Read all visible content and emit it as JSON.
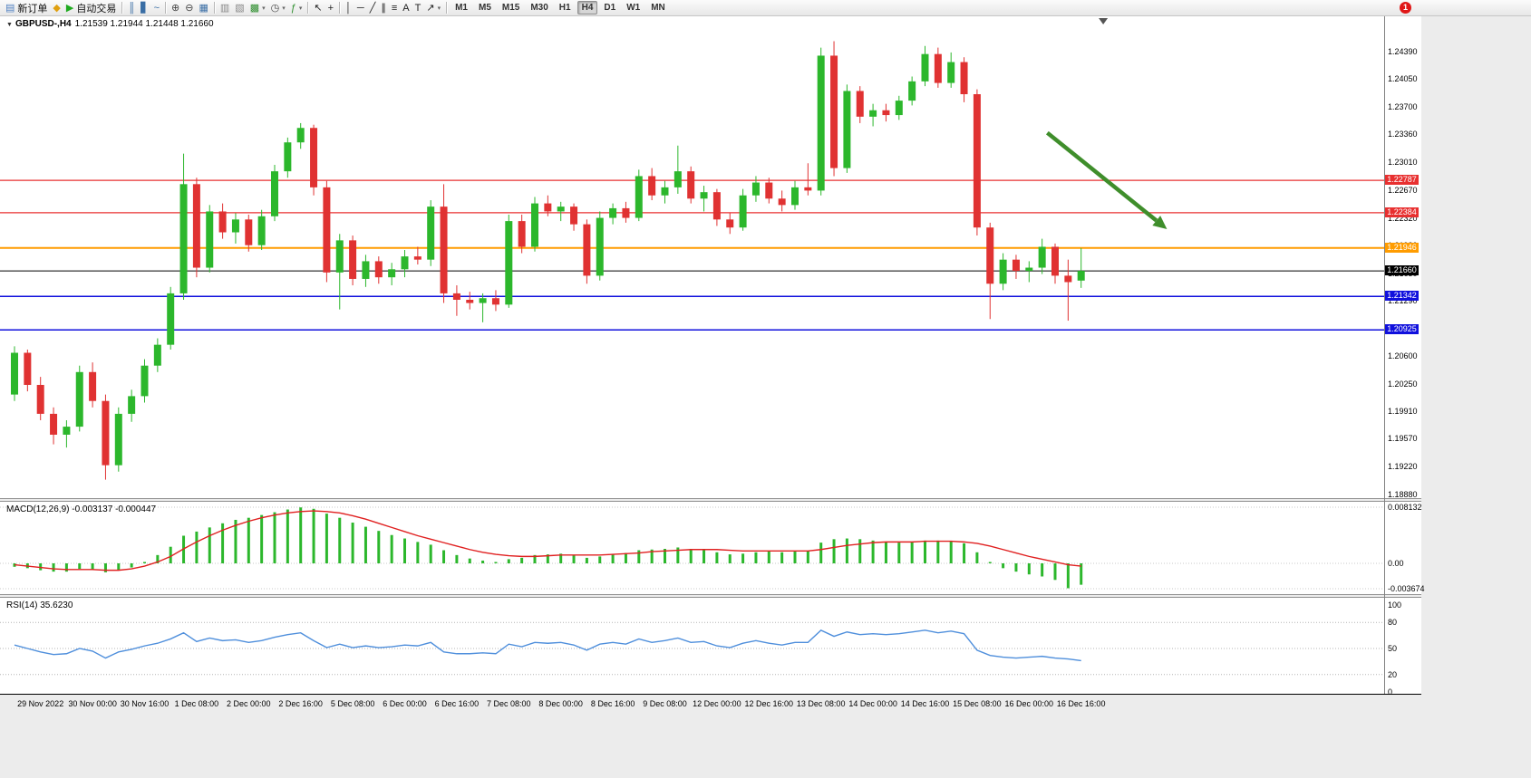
{
  "toolbar": {
    "badge": "1",
    "active_timeframe": "H4",
    "timeframes": [
      "M1",
      "M5",
      "M15",
      "M30",
      "H1",
      "H4",
      "D1",
      "W1",
      "MN"
    ],
    "items": [
      {
        "type": "btn",
        "name": "new-order-button",
        "icon": "new-order-icon",
        "glyph": "▤",
        "glyph_color": "#4f7fc0",
        "label": "新订单"
      },
      {
        "type": "btn",
        "name": "mql5-community-button",
        "icon": "diamond-icon",
        "glyph": "◆",
        "glyph_color": "#e0a010"
      },
      {
        "type": "btn",
        "name": "autotrade-button",
        "icon": "autotrade-play-icon",
        "glyph": "▶",
        "glyph_color": "#1faa1f",
        "label": "自动交易"
      },
      {
        "type": "sep"
      },
      {
        "type": "btn",
        "name": "bar-chart-button",
        "icon": "bar-chart-icon",
        "glyph": "║",
        "glyph_color": "#3a6ea5"
      },
      {
        "type": "btn",
        "name": "candlestick-chart-button",
        "icon": "candlestick-icon",
        "glyph": "▋",
        "glyph_color": "#3a6ea5"
      },
      {
        "type": "btn",
        "name": "line-chart-button",
        "icon": "line-chart-icon",
        "glyph": "~",
        "glyph_color": "#3a6ea5"
      },
      {
        "type": "sep"
      },
      {
        "type": "btn",
        "name": "zoom-in-button",
        "icon": "zoom-in-icon",
        "glyph": "⊕",
        "glyph_color": "#444"
      },
      {
        "type": "btn",
        "name": "zoom-out-button",
        "icon": "zoom-out-icon",
        "glyph": "⊖",
        "glyph_color": "#444"
      },
      {
        "type": "btn",
        "name": "tile-windows-button",
        "icon": "tile-windows-icon",
        "glyph": "▦",
        "glyph_color": "#3a6ea5"
      },
      {
        "type": "sep"
      },
      {
        "type": "btn",
        "name": "arrange-windows-button",
        "icon": "arrange-icon",
        "glyph": "▥",
        "glyph_color": "#888"
      },
      {
        "type": "btn",
        "name": "cascade-windows-button",
        "icon": "cascade-icon",
        "glyph": "▧",
        "glyph_color": "#888"
      },
      {
        "type": "btn",
        "name": "new-chart-button",
        "icon": "new-chart-icon",
        "glyph": "▩",
        "glyph_color": "#2f8f2f",
        "dropdown": true
      },
      {
        "type": "btn",
        "name": "periods-button",
        "icon": "clock-icon",
        "glyph": "◷",
        "glyph_color": "#444",
        "dropdown": true
      },
      {
        "type": "btn",
        "name": "indicators-button",
        "icon": "indicators-icon",
        "glyph": "ƒ",
        "glyph_color": "#2f8f2f",
        "dropdown": true
      },
      {
        "type": "sep"
      },
      {
        "type": "btn",
        "name": "cursor-button",
        "icon": "cursor-icon",
        "glyph": "↖",
        "glyph_color": "#222"
      },
      {
        "type": "btn",
        "name": "crosshair-button",
        "icon": "crosshair-icon",
        "glyph": "+",
        "glyph_color": "#222"
      },
      {
        "type": "sep"
      },
      {
        "type": "btn",
        "name": "vertical-line-button",
        "icon": "vertical-line-icon",
        "glyph": "│",
        "glyph_color": "#222"
      },
      {
        "type": "btn",
        "name": "horizontal-line-button",
        "icon": "horizontal-line-icon",
        "glyph": "─",
        "glyph_color": "#222"
      },
      {
        "type": "btn",
        "name": "trendline-button",
        "icon": "trendline-icon",
        "glyph": "╱",
        "glyph_color": "#222"
      },
      {
        "type": "btn",
        "name": "channel-button",
        "icon": "channel-icon",
        "glyph": "∥",
        "glyph_color": "#222"
      },
      {
        "type": "btn",
        "name": "fibonacci-button",
        "icon": "fibonacci-icon",
        "glyph": "≡",
        "glyph_color": "#222"
      },
      {
        "type": "btn",
        "name": "text-button",
        "icon": "text-icon",
        "glyph": "A",
        "glyph_color": "#222"
      },
      {
        "type": "btn",
        "name": "label-button",
        "icon": "label-icon",
        "glyph": "T",
        "glyph_color": "#222"
      },
      {
        "type": "btn",
        "name": "arrows-button",
        "icon": "arrow-marker-icon",
        "glyph": "↗",
        "glyph_color": "#222",
        "dropdown": true
      },
      {
        "type": "sep"
      }
    ]
  },
  "chart": {
    "collapse_arrow": "▼",
    "symbol_label": "GBPUSD-,H4",
    "ohlc_label": "1.21539 1.21944 1.21448 1.21660"
  },
  "chart_data": {
    "type": "candlestick",
    "symbol": "GBPUSD-",
    "timeframe": "H4",
    "ohlc": {
      "open": 1.21539,
      "high": 1.21944,
      "low": 1.21448,
      "close": 1.2166
    },
    "colors": {
      "bull": "#2cb72c",
      "bear": "#e03232",
      "macd_hist": "#2cb72c",
      "macd_signal": "#e02020",
      "rsi_line": "#4f8fdc"
    },
    "price_ticks": [
      1.2439,
      1.2405,
      1.237,
      1.2336,
      1.2301,
      1.2267,
      1.2232,
      1.2198,
      1.2163,
      1.2129,
      1.2094,
      1.206,
      1.2025,
      1.1991,
      1.1957,
      1.1922,
      1.1888
    ],
    "time_labels": [
      "29 Nov 2022",
      "30 Nov 00:00",
      "30 Nov 16:00",
      "1 Dec 08:00",
      "2 Dec 00:00",
      "2 Dec 16:00",
      "5 Dec 08:00",
      "6 Dec 00:00",
      "6 Dec 16:00",
      "7 Dec 08:00",
      "8 Dec 00:00",
      "8 Dec 16:00",
      "9 Dec 08:00",
      "12 Dec 00:00",
      "12 Dec 16:00",
      "13 Dec 08:00",
      "14 Dec 00:00",
      "14 Dec 16:00",
      "15 Dec 08:00",
      "16 Dec 00:00",
      "16 Dec 16:00"
    ],
    "hlines": [
      {
        "price": 1.22787,
        "label": "1.22787",
        "color": "#e83030",
        "lw": 1.2
      },
      {
        "price": 1.22384,
        "label": "1.22384",
        "color": "#e83030",
        "lw": 1.2
      },
      {
        "price": 1.21946,
        "label": "1.21946",
        "color": "#ff9c00",
        "lw": 2
      },
      {
        "price": 1.2166,
        "label": "1.21660",
        "color": "#000000",
        "lw": 1
      },
      {
        "price": 1.21342,
        "label": "1.21342",
        "color": "#1010dd",
        "lw": 1.5
      },
      {
        "price": 1.20925,
        "label": "1.20925",
        "color": "#1010dd",
        "lw": 1.5
      }
    ],
    "current_price": 1.2166,
    "candles": [
      [
        1.2012,
        1.2072,
        1.2004,
        1.2064
      ],
      [
        1.2064,
        1.2068,
        1.2016,
        1.2024
      ],
      [
        1.2024,
        1.2034,
        1.198,
        1.1988
      ],
      [
        1.1988,
        1.1996,
        1.195,
        1.1962
      ],
      [
        1.1962,
        1.198,
        1.1946,
        1.1972
      ],
      [
        1.1972,
        1.2048,
        1.1966,
        1.204
      ],
      [
        1.204,
        1.2052,
        1.1996,
        1.2004
      ],
      [
        1.2004,
        1.2012,
        1.1906,
        1.1924
      ],
      [
        1.1924,
        1.1996,
        1.1916,
        1.1988
      ],
      [
        1.1988,
        1.2018,
        1.1978,
        1.201
      ],
      [
        1.201,
        1.2056,
        1.2002,
        1.2048
      ],
      [
        1.2048,
        1.2082,
        1.204,
        1.2074
      ],
      [
        1.2074,
        1.2146,
        1.2068,
        1.2138
      ],
      [
        1.2138,
        1.2312,
        1.213,
        1.2274
      ],
      [
        1.2274,
        1.2282,
        1.2158,
        1.217
      ],
      [
        1.217,
        1.2248,
        1.2164,
        1.224
      ],
      [
        1.224,
        1.225,
        1.2206,
        1.2214
      ],
      [
        1.2214,
        1.2238,
        1.22,
        1.223
      ],
      [
        1.223,
        1.2236,
        1.219,
        1.2198
      ],
      [
        1.2198,
        1.2242,
        1.2192,
        1.2234
      ],
      [
        1.2234,
        1.2298,
        1.2228,
        1.229
      ],
      [
        1.229,
        1.2332,
        1.2282,
        1.2326
      ],
      [
        1.2326,
        1.235,
        1.2318,
        1.2344
      ],
      [
        1.2344,
        1.2348,
        1.226,
        1.227
      ],
      [
        1.227,
        1.2278,
        1.2152,
        1.2164
      ],
      [
        1.2164,
        1.2212,
        1.2118,
        1.2204
      ],
      [
        1.2204,
        1.221,
        1.2148,
        1.2156
      ],
      [
        1.2156,
        1.2186,
        1.2146,
        1.2178
      ],
      [
        1.2178,
        1.2184,
        1.215,
        1.2158
      ],
      [
        1.2158,
        1.2176,
        1.2148,
        1.2168
      ],
      [
        1.2168,
        1.2192,
        1.2158,
        1.2184
      ],
      [
        1.2184,
        1.2196,
        1.2174,
        1.218
      ],
      [
        1.218,
        1.2254,
        1.2172,
        1.2246
      ],
      [
        1.2246,
        1.2274,
        1.2126,
        1.2138
      ],
      [
        1.2138,
        1.2148,
        1.211,
        1.213
      ],
      [
        1.213,
        1.214,
        1.2118,
        1.2126
      ],
      [
        1.2126,
        1.2138,
        1.2102,
        1.2132
      ],
      [
        1.2132,
        1.2142,
        1.2116,
        1.2124
      ],
      [
        1.2124,
        1.2236,
        1.212,
        1.2228
      ],
      [
        1.2228,
        1.2236,
        1.2188,
        1.2196
      ],
      [
        1.2196,
        1.2258,
        1.219,
        1.225
      ],
      [
        1.225,
        1.226,
        1.2234,
        1.224
      ],
      [
        1.224,
        1.2252,
        1.2228,
        1.2246
      ],
      [
        1.2246,
        1.225,
        1.2216,
        1.2224
      ],
      [
        1.2224,
        1.223,
        1.215,
        1.216
      ],
      [
        1.216,
        1.224,
        1.2154,
        1.2232
      ],
      [
        1.2232,
        1.225,
        1.2224,
        1.2244
      ],
      [
        1.2244,
        1.2252,
        1.2226,
        1.2232
      ],
      [
        1.2232,
        1.2292,
        1.2228,
        1.2284
      ],
      [
        1.2284,
        1.2294,
        1.2254,
        1.226
      ],
      [
        1.226,
        1.2278,
        1.225,
        1.227
      ],
      [
        1.227,
        1.2322,
        1.2262,
        1.229
      ],
      [
        1.229,
        1.2296,
        1.225,
        1.2256
      ],
      [
        1.2256,
        1.2272,
        1.224,
        1.2264
      ],
      [
        1.2264,
        1.2268,
        1.2222,
        1.223
      ],
      [
        1.223,
        1.2238,
        1.2212,
        1.222
      ],
      [
        1.222,
        1.2268,
        1.2216,
        1.226
      ],
      [
        1.226,
        1.2284,
        1.2252,
        1.2276
      ],
      [
        1.2276,
        1.2282,
        1.225,
        1.2256
      ],
      [
        1.2256,
        1.2266,
        1.224,
        1.2248
      ],
      [
        1.2248,
        1.2278,
        1.2242,
        1.227
      ],
      [
        1.227,
        1.23,
        1.226,
        1.2266
      ],
      [
        1.2266,
        1.2444,
        1.226,
        1.2434
      ],
      [
        1.2434,
        1.2452,
        1.2284,
        1.2294
      ],
      [
        1.2294,
        1.2398,
        1.2288,
        1.239
      ],
      [
        1.239,
        1.2396,
        1.235,
        1.2358
      ],
      [
        1.2358,
        1.2374,
        1.2346,
        1.2366
      ],
      [
        1.2366,
        1.2374,
        1.2352,
        1.236
      ],
      [
        1.236,
        1.2384,
        1.2354,
        1.2378
      ],
      [
        1.2378,
        1.2408,
        1.2372,
        1.2402
      ],
      [
        1.2402,
        1.2446,
        1.2396,
        1.2436
      ],
      [
        1.2436,
        1.2444,
        1.2394,
        1.24
      ],
      [
        1.24,
        1.2438,
        1.2394,
        1.2426
      ],
      [
        1.2426,
        1.2432,
        1.2376,
        1.2386
      ],
      [
        1.2386,
        1.2392,
        1.221,
        1.222
      ],
      [
        1.222,
        1.2226,
        1.2106,
        1.215
      ],
      [
        1.215,
        1.2188,
        1.2142,
        1.218
      ],
      [
        1.218,
        1.2186,
        1.2156,
        1.2166
      ],
      [
        1.2166,
        1.2178,
        1.2152,
        1.217
      ],
      [
        1.217,
        1.2206,
        1.2162,
        1.2196
      ],
      [
        1.2196,
        1.22,
        1.215,
        1.216
      ],
      [
        1.216,
        1.218,
        1.2104,
        1.2152
      ],
      [
        1.21539,
        1.21944,
        1.21448,
        1.2166
      ]
    ],
    "macd": {
      "title": "MACD(12,26,9)",
      "values_text": "-0.003137 -0.000447",
      "scale": [
        {
          "label": "0.008132",
          "value": 0.008132
        },
        {
          "label": "0.00",
          "value": 0
        },
        {
          "label": "-0.003674",
          "value": -0.003674
        }
      ],
      "histogram": [
        -0.0005,
        -0.0007,
        -0.001,
        -0.0012,
        -0.0012,
        -0.0008,
        -0.0009,
        -0.0013,
        -0.001,
        -0.0006,
        0.0002,
        0.0012,
        0.0024,
        0.004,
        0.0046,
        0.0052,
        0.0058,
        0.0063,
        0.0066,
        0.007,
        0.0074,
        0.0078,
        0.0081,
        0.0079,
        0.0072,
        0.0066,
        0.0059,
        0.0053,
        0.0047,
        0.0041,
        0.0036,
        0.0031,
        0.0027,
        0.0019,
        0.0012,
        0.0007,
        0.0004,
        0.0002,
        0.0006,
        0.0008,
        0.0012,
        0.0013,
        0.0014,
        0.0012,
        0.0008,
        0.001,
        0.0013,
        0.0015,
        0.0019,
        0.002,
        0.0021,
        0.0023,
        0.0021,
        0.002,
        0.0016,
        0.0013,
        0.0014,
        0.0016,
        0.0017,
        0.0016,
        0.0017,
        0.0018,
        0.003,
        0.0035,
        0.0036,
        0.0035,
        0.0033,
        0.0031,
        0.003,
        0.0031,
        0.0033,
        0.0033,
        0.0032,
        0.0029,
        0.0016,
        0.0002,
        -0.0007,
        -0.0012,
        -0.0016,
        -0.0019,
        -0.0024,
        -0.0036,
        -0.0031
      ],
      "signal": [
        -0.0002,
        -0.0004,
        -0.0006,
        -0.0008,
        -0.0009,
        -0.0009,
        -0.0009,
        -0.001,
        -0.001,
        -0.0008,
        -0.0004,
        0.0002,
        0.001,
        0.0021,
        0.0031,
        0.004,
        0.0048,
        0.0055,
        0.0061,
        0.0066,
        0.007,
        0.0073,
        0.0075,
        0.0076,
        0.0075,
        0.0073,
        0.0069,
        0.0064,
        0.0058,
        0.0052,
        0.0046,
        0.004,
        0.0035,
        0.003,
        0.0025,
        0.002,
        0.0016,
        0.0013,
        0.0011,
        0.001,
        0.001,
        0.0011,
        0.0012,
        0.0012,
        0.0012,
        0.0012,
        0.0013,
        0.0014,
        0.0015,
        0.0017,
        0.0018,
        0.0019,
        0.002,
        0.002,
        0.002,
        0.0019,
        0.0018,
        0.0018,
        0.0018,
        0.0018,
        0.0018,
        0.0018,
        0.002,
        0.0023,
        0.0026,
        0.0028,
        0.003,
        0.0031,
        0.0031,
        0.0031,
        0.0032,
        0.0032,
        0.0032,
        0.0031,
        0.0029,
        0.0025,
        0.002,
        0.0015,
        0.001,
        0.0006,
        0.0002,
        -0.0002,
        -0.0004
      ]
    },
    "rsi": {
      "title": "RSI(14)",
      "value_text": "35.6230",
      "levels": [
        80,
        50,
        20
      ],
      "scale": [
        {
          "label": "100",
          "value": 100
        },
        {
          "label": "80",
          "value": 80
        },
        {
          "label": "50",
          "value": 50
        },
        {
          "label": "20",
          "value": 20
        },
        {
          "label": "0",
          "value": 0
        }
      ],
      "values": [
        54,
        50,
        46,
        43,
        44,
        50,
        47,
        39,
        46,
        49,
        53,
        56,
        61,
        68,
        58,
        62,
        59,
        60,
        57,
        59,
        63,
        66,
        68,
        59,
        51,
        55,
        51,
        53,
        51,
        52,
        54,
        53,
        57,
        46,
        44,
        44,
        45,
        44,
        55,
        52,
        57,
        56,
        57,
        54,
        48,
        55,
        57,
        55,
        61,
        57,
        59,
        62,
        57,
        58,
        53,
        51,
        56,
        59,
        56,
        54,
        57,
        57,
        71,
        64,
        69,
        66,
        67,
        66,
        67,
        69,
        71,
        68,
        70,
        67,
        48,
        42,
        40,
        39,
        40,
        41,
        39,
        38,
        36
      ]
    },
    "trend_arrow": {
      "from_bar": 79.4,
      "from_price": 1.2338,
      "to_bar": 88.6,
      "to_price": 1.2218,
      "color": "#3f8e2b"
    },
    "shift_marker_bar": 83.7
  }
}
